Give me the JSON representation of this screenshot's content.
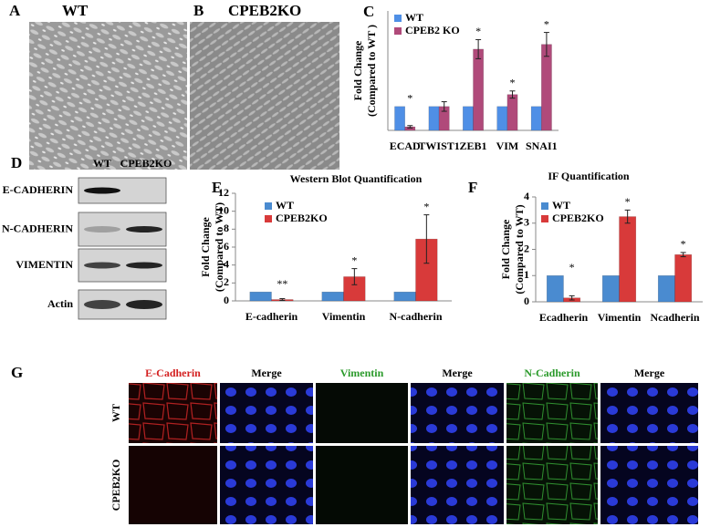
{
  "panel_a": {
    "label": "A",
    "title": "WT"
  },
  "panel_b": {
    "label": "B",
    "title": "CPEB2KO"
  },
  "chart_data": [
    {
      "type": "bar",
      "label": "C",
      "ylabel": [
        "Fold Change",
        "(Compared to WT )"
      ],
      "categories": [
        "ECAD",
        "TWIST1",
        "ZEB1",
        "VIM",
        "SNAI1"
      ],
      "series": [
        {
          "name": "WT",
          "color": "#4f8fe6",
          "values": [
            1,
            1,
            1,
            1,
            1
          ]
        },
        {
          "name": "CPEB2 KO",
          "color": "#b04a7a",
          "values": [
            0.15,
            1,
            3.4,
            1.5,
            3.6
          ],
          "errors": [
            0.05,
            0.2,
            0.4,
            0.15,
            0.5
          ]
        }
      ],
      "annotations": [
        "*",
        null,
        "*",
        "*",
        "*"
      ],
      "ylim": [
        0,
        5
      ]
    },
    {
      "type": "bar",
      "label": "E",
      "title": "Western Blot Quantification",
      "ylabel": [
        "Fold Change",
        "(Compared to WT)"
      ],
      "categories": [
        "E-cadherin",
        "Vimentin",
        "N-cadherin"
      ],
      "series": [
        {
          "name": "WT",
          "color": "#4a8bd0",
          "values": [
            1,
            1,
            1
          ]
        },
        {
          "name": "CPEB2KO",
          "color": "#d83a3a",
          "values": [
            0.15,
            2.7,
            6.9
          ],
          "errors": [
            0.1,
            0.9,
            2.7
          ]
        }
      ],
      "annotations": [
        "**",
        "*",
        "*"
      ],
      "ylim": [
        0,
        12
      ],
      "yticks": [
        0,
        2,
        4,
        6,
        8,
        10,
        12
      ]
    },
    {
      "type": "bar",
      "label": "F",
      "title": "IF Quantification",
      "ylabel": [
        "Fold Change",
        "(Compared to WT)"
      ],
      "categories": [
        "Ecadherin",
        "Vimentin",
        "Ncadherin"
      ],
      "series": [
        {
          "name": "WT",
          "color": "#4a8bd0",
          "values": [
            1,
            1,
            1
          ]
        },
        {
          "name": "CPEB2KO",
          "color": "#d83a3a",
          "values": [
            0.15,
            3.25,
            1.8
          ],
          "errors": [
            0.08,
            0.25,
            0.08
          ]
        }
      ],
      "annotations": [
        "*",
        "*",
        "*"
      ],
      "ylim": [
        0,
        4
      ],
      "yticks": [
        0,
        1,
        2,
        3,
        4
      ]
    }
  ],
  "panel_d": {
    "label": "D",
    "lanes": [
      "WT",
      "CPEB2KO"
    ],
    "blots": [
      "E-CADHERIN",
      "N-CADHERIN",
      "VIMENTIN",
      "Actin"
    ]
  },
  "panel_g": {
    "label": "G",
    "columns": [
      "E-Cadherin",
      "Merge",
      "Vimentin",
      "Merge",
      "N-Cadherin",
      "Merge"
    ],
    "rows": [
      "WT",
      "CPEB2KO"
    ]
  }
}
